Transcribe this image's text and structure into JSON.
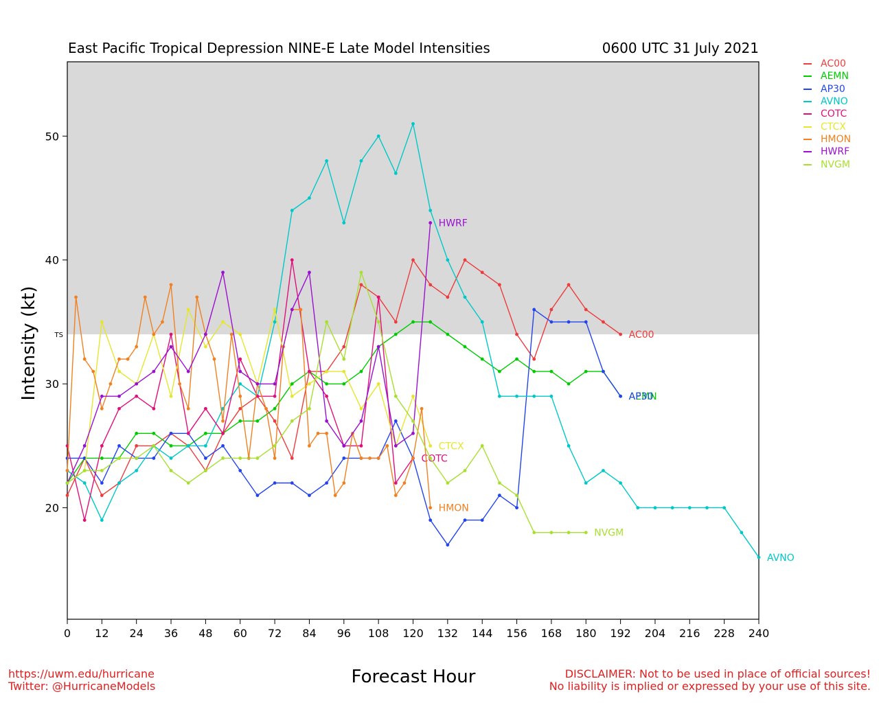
{
  "header": {
    "title": "East Pacific Tropical Depression NINE-E Late Model Intensities",
    "datetime": "0600 UTC 31 July 2021"
  },
  "footer": {
    "url": "https://uwm.edu/hurricane",
    "twitter": "Twitter: @HurricaneModels",
    "disclaimer_line1": "DISCLAIMER: Not to be used in place of official sources!",
    "disclaimer_line2": "No liability is implied or expressed by your use of this site."
  },
  "chart_data": {
    "type": "line",
    "title": "East Pacific Tropical Depression NINE-E Late Model Intensities",
    "xlabel": "Forecast Hour",
    "ylabel": "Intensity (kt)",
    "xlim": [
      0,
      240
    ],
    "ylim": [
      11,
      56
    ],
    "xticks": [
      0,
      12,
      24,
      36,
      48,
      60,
      72,
      84,
      96,
      108,
      120,
      132,
      144,
      156,
      168,
      180,
      192,
      204,
      216,
      228,
      240
    ],
    "yticks": [
      20,
      30,
      40,
      50
    ],
    "threshold": {
      "label": "TS",
      "value": 34
    },
    "shaded_region": {
      "from": 34,
      "to": 56,
      "color": "#d9d9d9"
    },
    "legend_position": "top-right, outside plot",
    "grid": false,
    "series": [
      {
        "name": "AC00",
        "color": "#ee3b3b",
        "x": [
          0,
          6,
          12,
          18,
          24,
          30,
          36,
          42,
          48,
          54,
          60,
          66,
          72,
          78,
          84,
          90,
          96,
          102,
          108,
          114,
          120,
          126,
          132,
          138,
          144,
          150,
          156,
          162,
          168,
          174,
          180,
          186,
          192
        ],
        "y": [
          21,
          24,
          21,
          22,
          25,
          25,
          26,
          25,
          23,
          26,
          28,
          29,
          27,
          24,
          31,
          31,
          33,
          38,
          37,
          35,
          40,
          38,
          37,
          40,
          39,
          38,
          34,
          32,
          36,
          38,
          36,
          35,
          34
        ]
      },
      {
        "name": "AEMN",
        "color": "#00cc00",
        "x": [
          0,
          6,
          12,
          18,
          24,
          30,
          36,
          42,
          48,
          54,
          60,
          66,
          72,
          78,
          84,
          90,
          96,
          102,
          108,
          114,
          120,
          126,
          132,
          138,
          144,
          150,
          156,
          162,
          168,
          174,
          180,
          186,
          192
        ],
        "y": [
          22,
          24,
          24,
          24,
          26,
          26,
          25,
          25,
          26,
          26,
          27,
          27,
          28,
          30,
          31,
          30,
          30,
          31,
          33,
          34,
          35,
          35,
          34,
          33,
          32,
          31,
          32,
          31,
          31,
          30,
          31,
          31,
          29
        ]
      },
      {
        "name": "AP30",
        "color": "#2244ee",
        "x": [
          0,
          6,
          12,
          18,
          24,
          30,
          36,
          42,
          48,
          54,
          60,
          66,
          72,
          78,
          84,
          90,
          96,
          102,
          108,
          114,
          120,
          126,
          132,
          138,
          144,
          150,
          156,
          162,
          168,
          174,
          180,
          186,
          192
        ],
        "y": [
          24,
          24,
          22,
          25,
          24,
          24,
          26,
          26,
          24,
          25,
          23,
          21,
          22,
          22,
          21,
          22,
          24,
          24,
          24,
          27,
          24,
          19,
          17,
          19,
          19,
          21,
          20,
          36,
          35,
          35,
          35,
          31,
          29
        ]
      },
      {
        "name": "AVNO",
        "color": "#00c8c8",
        "x": [
          0,
          6,
          12,
          18,
          24,
          30,
          36,
          42,
          48,
          54,
          60,
          66,
          72,
          78,
          84,
          90,
          96,
          102,
          108,
          114,
          120,
          126,
          132,
          138,
          144,
          150,
          156,
          162,
          168,
          174,
          180,
          186,
          192,
          198,
          204,
          210,
          216,
          222,
          228,
          234,
          240
        ],
        "y": [
          23,
          22,
          19,
          22,
          23,
          25,
          24,
          25,
          25,
          28,
          30,
          29,
          35,
          44,
          45,
          48,
          43,
          48,
          50,
          47,
          51,
          44,
          40,
          37,
          35,
          29,
          29,
          29,
          29,
          25,
          22,
          23,
          22,
          20,
          20,
          20,
          20,
          20,
          20,
          18,
          16
        ]
      },
      {
        "name": "COTC",
        "color": "#e0107a",
        "x": [
          0,
          6,
          12,
          18,
          24,
          30,
          36,
          42,
          48,
          54,
          60,
          66,
          72,
          78,
          84,
          90,
          96,
          102,
          108,
          114,
          120
        ],
        "y": [
          25,
          19,
          25,
          28,
          29,
          28,
          34,
          26,
          28,
          26,
          32,
          29,
          29,
          40,
          31,
          29,
          25,
          25,
          37,
          22,
          24
        ]
      },
      {
        "name": "CTCX",
        "color": "#e6e62e",
        "x": [
          0,
          6,
          12,
          18,
          24,
          30,
          36,
          42,
          48,
          54,
          60,
          66,
          72,
          78,
          84,
          90,
          96,
          102,
          108,
          114,
          120,
          126
        ],
        "y": [
          22,
          23,
          35,
          31,
          30,
          34,
          29,
          36,
          33,
          35,
          34,
          30,
          36,
          29,
          30,
          31,
          31,
          28,
          30,
          25,
          29,
          25
        ]
      },
      {
        "name": "HMON",
        "color": "#f08020",
        "x": [
          0,
          3,
          6,
          9,
          12,
          15,
          18,
          21,
          24,
          27,
          30,
          33,
          36,
          39,
          42,
          45,
          48,
          51,
          54,
          57,
          60,
          63,
          66,
          69,
          72,
          75,
          78,
          81,
          84,
          87,
          90,
          93,
          96,
          99,
          102,
          105,
          108,
          111,
          114,
          117,
          120,
          123,
          126
        ],
        "y": [
          23,
          37,
          32,
          31,
          28,
          30,
          32,
          32,
          33,
          37,
          34,
          35,
          38,
          30,
          28,
          37,
          34,
          32,
          27,
          34,
          29,
          24,
          30,
          28,
          24,
          33,
          36,
          36,
          25,
          26,
          26,
          21,
          22,
          26,
          24,
          24,
          24,
          25,
          21,
          22,
          24,
          28,
          20
        ]
      },
      {
        "name": "HWRF",
        "color": "#9b10d0",
        "x": [
          0,
          6,
          12,
          18,
          24,
          30,
          36,
          42,
          48,
          54,
          60,
          66,
          72,
          78,
          84,
          90,
          96,
          102,
          108,
          114,
          120,
          126
        ],
        "y": [
          22,
          25,
          29,
          29,
          30,
          31,
          33,
          31,
          34,
          39,
          31,
          30,
          30,
          36,
          39,
          27,
          25,
          27,
          33,
          25,
          26,
          43
        ]
      },
      {
        "name": "NVGM",
        "color": "#a8e030",
        "x": [
          0,
          6,
          12,
          18,
          24,
          30,
          36,
          42,
          48,
          54,
          60,
          66,
          72,
          78,
          84,
          90,
          96,
          102,
          108,
          114,
          120,
          126,
          132,
          138,
          144,
          150,
          156,
          162,
          168,
          174,
          180
        ],
        "y": [
          22,
          23,
          23,
          24,
          24,
          25,
          23,
          22,
          23,
          24,
          24,
          24,
          25,
          27,
          28,
          35,
          32,
          39,
          35,
          29,
          27,
          24,
          22,
          23,
          25,
          22,
          21,
          18,
          18,
          18,
          18
        ]
      }
    ]
  }
}
